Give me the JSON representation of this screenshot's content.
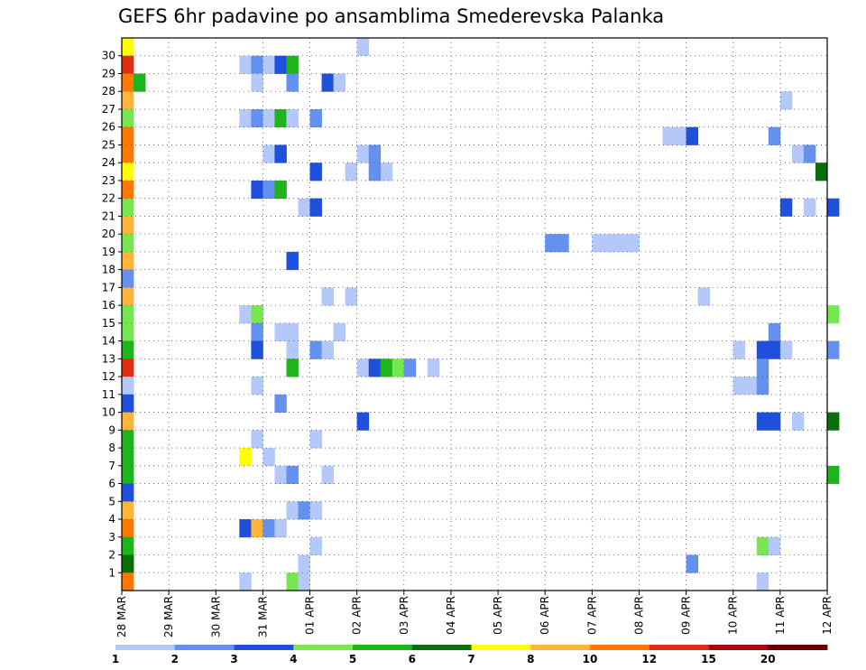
{
  "chart_data": {
    "type": "heatmap",
    "title": "GEFS 6hr padavine po ansamblima Smederevska Palanka",
    "xlabel": "",
    "ylabel": "",
    "x_tick_labels": [
      "28 MAR",
      "29 MAR",
      "30 MAR",
      "31 MAR",
      "01 APR",
      "02 APR",
      "03 APR",
      "04 APR",
      "05 APR",
      "06 APR",
      "07 APR",
      "08 APR",
      "09 APR",
      "10 APR",
      "11 APR",
      "12 APR"
    ],
    "y_tick_labels": [
      "1",
      "2",
      "3",
      "4",
      "5",
      "6",
      "7",
      "8",
      "9",
      "10",
      "11",
      "12",
      "13",
      "14",
      "15",
      "16",
      "17",
      "18",
      "19",
      "20",
      "21",
      "22",
      "23",
      "24",
      "25",
      "26",
      "27",
      "28",
      "29",
      "30"
    ],
    "xlim_days": [
      0,
      15
    ],
    "ylim_members": [
      0,
      30
    ],
    "grid": true,
    "timestep_hours": 6,
    "colorbar": {
      "tick_labels": [
        "1",
        "2",
        "3",
        "4",
        "5",
        "6",
        "7",
        "8",
        "10",
        "12",
        "15",
        "20"
      ],
      "colors": [
        "#b4c8fa",
        "#6490f0",
        "#1e50dc",
        "#78e650",
        "#1eb41e",
        "#0a6e0a",
        "#ffff00",
        "#ffb43c",
        "#ff7800",
        "#e12d14",
        "#a50a0a",
        "#640000"
      ]
    },
    "cells": [
      {
        "m": 30,
        "t": 0,
        "c": 6
      },
      {
        "m": 30,
        "t": 20,
        "c": 0
      },
      {
        "m": 29,
        "t": 0,
        "c": 9
      },
      {
        "m": 29,
        "t": 10,
        "c": 0
      },
      {
        "m": 29,
        "t": 11,
        "c": 1
      },
      {
        "m": 29,
        "t": 12,
        "c": 0
      },
      {
        "m": 29,
        "t": 13,
        "c": 2
      },
      {
        "m": 29,
        "t": 14,
        "c": 4
      },
      {
        "m": 28,
        "t": 0,
        "c": 8
      },
      {
        "m": 28,
        "t": 1,
        "c": 4
      },
      {
        "m": 28,
        "t": 11,
        "c": 0
      },
      {
        "m": 28,
        "t": 14,
        "c": 1
      },
      {
        "m": 28,
        "t": 17,
        "c": 2
      },
      {
        "m": 28,
        "t": 18,
        "c": 0
      },
      {
        "m": 27,
        "t": 0,
        "c": 7
      },
      {
        "m": 27,
        "t": 56,
        "c": 0
      },
      {
        "m": 26,
        "t": 0,
        "c": 3
      },
      {
        "m": 26,
        "t": 10,
        "c": 0
      },
      {
        "m": 26,
        "t": 11,
        "c": 1
      },
      {
        "m": 26,
        "t": 12,
        "c": 0
      },
      {
        "m": 26,
        "t": 13,
        "c": 4
      },
      {
        "m": 26,
        "t": 14,
        "c": 0
      },
      {
        "m": 26,
        "t": 16,
        "c": 1
      },
      {
        "m": 25,
        "t": 0,
        "c": 8
      },
      {
        "m": 25,
        "t": 46,
        "c": 0
      },
      {
        "m": 25,
        "t": 47,
        "c": 0
      },
      {
        "m": 25,
        "t": 48,
        "c": 2
      },
      {
        "m": 25,
        "t": 55,
        "c": 1
      },
      {
        "m": 24,
        "t": 0,
        "c": 8
      },
      {
        "m": 24,
        "t": 12,
        "c": 0
      },
      {
        "m": 24,
        "t": 13,
        "c": 2
      },
      {
        "m": 24,
        "t": 20,
        "c": 0
      },
      {
        "m": 24,
        "t": 21,
        "c": 1
      },
      {
        "m": 24,
        "t": 57,
        "c": 0
      },
      {
        "m": 24,
        "t": 58,
        "c": 1
      },
      {
        "m": 23,
        "t": 0,
        "c": 6
      },
      {
        "m": 23,
        "t": 16,
        "c": 2
      },
      {
        "m": 23,
        "t": 19,
        "c": 0
      },
      {
        "m": 23,
        "t": 22,
        "c": 0
      },
      {
        "m": 23,
        "t": 21,
        "c": 1
      },
      {
        "m": 23,
        "t": 59,
        "c": 5
      },
      {
        "m": 22,
        "t": 0,
        "c": 8
      },
      {
        "m": 22,
        "t": 11,
        "c": 2
      },
      {
        "m": 22,
        "t": 12,
        "c": 1
      },
      {
        "m": 22,
        "t": 13,
        "c": 4
      },
      {
        "m": 21,
        "t": 0,
        "c": 3
      },
      {
        "m": 21,
        "t": 15,
        "c": 0
      },
      {
        "m": 21,
        "t": 16,
        "c": 2
      },
      {
        "m": 21,
        "t": 56,
        "c": 2
      },
      {
        "m": 21,
        "t": 58,
        "c": 0
      },
      {
        "m": 21,
        "t": 60,
        "c": 2
      },
      {
        "m": 20,
        "t": 0,
        "c": 7
      },
      {
        "m": 19,
        "t": 0,
        "c": 3
      },
      {
        "m": 19,
        "t": 36,
        "c": 1
      },
      {
        "m": 19,
        "t": 37,
        "c": 1
      },
      {
        "m": 19,
        "t": 40,
        "c": 0
      },
      {
        "m": 19,
        "t": 41,
        "c": 0
      },
      {
        "m": 19,
        "t": 42,
        "c": 0
      },
      {
        "m": 19,
        "t": 43,
        "c": 0
      },
      {
        "m": 18,
        "t": 0,
        "c": 7
      },
      {
        "m": 18,
        "t": 14,
        "c": 2
      },
      {
        "m": 17,
        "t": 0,
        "c": 1
      },
      {
        "m": 16,
        "t": 0,
        "c": 7
      },
      {
        "m": 16,
        "t": 17,
        "c": 0
      },
      {
        "m": 16,
        "t": 19,
        "c": 0
      },
      {
        "m": 16,
        "t": 49,
        "c": 0
      },
      {
        "m": 15,
        "t": 0,
        "c": 3
      },
      {
        "m": 15,
        "t": 10,
        "c": 0
      },
      {
        "m": 15,
        "t": 11,
        "c": 3
      },
      {
        "m": 15,
        "t": 60,
        "c": 3
      },
      {
        "m": 14,
        "t": 0,
        "c": 3
      },
      {
        "m": 14,
        "t": 11,
        "c": 1
      },
      {
        "m": 14,
        "t": 13,
        "c": 0
      },
      {
        "m": 14,
        "t": 14,
        "c": 0
      },
      {
        "m": 14,
        "t": 18,
        "c": 0
      },
      {
        "m": 14,
        "t": 55,
        "c": 1
      },
      {
        "m": 13,
        "t": 0,
        "c": 4
      },
      {
        "m": 13,
        "t": 11,
        "c": 2
      },
      {
        "m": 13,
        "t": 14,
        "c": 0
      },
      {
        "m": 13,
        "t": 16,
        "c": 1
      },
      {
        "m": 13,
        "t": 17,
        "c": 0
      },
      {
        "m": 13,
        "t": 52,
        "c": 0
      },
      {
        "m": 13,
        "t": 54,
        "c": 2
      },
      {
        "m": 13,
        "t": 55,
        "c": 2
      },
      {
        "m": 13,
        "t": 56,
        "c": 0
      },
      {
        "m": 13,
        "t": 60,
        "c": 1
      },
      {
        "m": 12,
        "t": 0,
        "c": 9
      },
      {
        "m": 12,
        "t": 14,
        "c": 4
      },
      {
        "m": 12,
        "t": 20,
        "c": 0
      },
      {
        "m": 12,
        "t": 21,
        "c": 2
      },
      {
        "m": 12,
        "t": 22,
        "c": 4
      },
      {
        "m": 12,
        "t": 23,
        "c": 3
      },
      {
        "m": 12,
        "t": 24,
        "c": 1
      },
      {
        "m": 12,
        "t": 26,
        "c": 0
      },
      {
        "m": 12,
        "t": 54,
        "c": 1
      },
      {
        "m": 11,
        "t": 0,
        "c": 0
      },
      {
        "m": 11,
        "t": 11,
        "c": 0
      },
      {
        "m": 11,
        "t": 52,
        "c": 0
      },
      {
        "m": 11,
        "t": 53,
        "c": 0
      },
      {
        "m": 11,
        "t": 54,
        "c": 1
      },
      {
        "m": 10,
        "t": 0,
        "c": 2
      },
      {
        "m": 10,
        "t": 13,
        "c": 1
      },
      {
        "m": 9,
        "t": 0,
        "c": 7
      },
      {
        "m": 9,
        "t": 20,
        "c": 2
      },
      {
        "m": 9,
        "t": 54,
        "c": 2
      },
      {
        "m": 9,
        "t": 55,
        "c": 2
      },
      {
        "m": 9,
        "t": 57,
        "c": 0
      },
      {
        "m": 9,
        "t": 60,
        "c": 5
      },
      {
        "m": 8,
        "t": 0,
        "c": 4
      },
      {
        "m": 8,
        "t": 11,
        "c": 0
      },
      {
        "m": 8,
        "t": 16,
        "c": 0
      },
      {
        "m": 7,
        "t": 0,
        "c": 4
      },
      {
        "m": 7,
        "t": 10,
        "c": 6
      },
      {
        "m": 7,
        "t": 12,
        "c": 0
      },
      {
        "m": 6,
        "t": 0,
        "c": 4
      },
      {
        "m": 6,
        "t": 13,
        "c": 0
      },
      {
        "m": 6,
        "t": 14,
        "c": 1
      },
      {
        "m": 6,
        "t": 17,
        "c": 0
      },
      {
        "m": 6,
        "t": 60,
        "c": 4
      },
      {
        "m": 5,
        "t": 0,
        "c": 2
      },
      {
        "m": 4,
        "t": 0,
        "c": 7
      },
      {
        "m": 4,
        "t": 14,
        "c": 0
      },
      {
        "m": 4,
        "t": 15,
        "c": 1
      },
      {
        "m": 4,
        "t": 16,
        "c": 0
      },
      {
        "m": 3,
        "t": 0,
        "c": 8
      },
      {
        "m": 3,
        "t": 10,
        "c": 2
      },
      {
        "m": 3,
        "t": 11,
        "c": 7
      },
      {
        "m": 3,
        "t": 12,
        "c": 1
      },
      {
        "m": 3,
        "t": 13,
        "c": 0
      },
      {
        "m": 2,
        "t": 0,
        "c": 4
      },
      {
        "m": 2,
        "t": 16,
        "c": 0
      },
      {
        "m": 2,
        "t": 54,
        "c": 3
      },
      {
        "m": 2,
        "t": 55,
        "c": 0
      },
      {
        "m": 1,
        "t": 0,
        "c": 5
      },
      {
        "m": 1,
        "t": 15,
        "c": 0
      },
      {
        "m": 1,
        "t": 48,
        "c": 1
      },
      {
        "m": 0,
        "t": 0,
        "c": 8
      },
      {
        "m": 0,
        "t": 10,
        "c": 0
      },
      {
        "m": 0,
        "t": 14,
        "c": 3
      },
      {
        "m": 0,
        "t": 15,
        "c": 0
      },
      {
        "m": 0,
        "t": 54,
        "c": 0
      }
    ]
  }
}
